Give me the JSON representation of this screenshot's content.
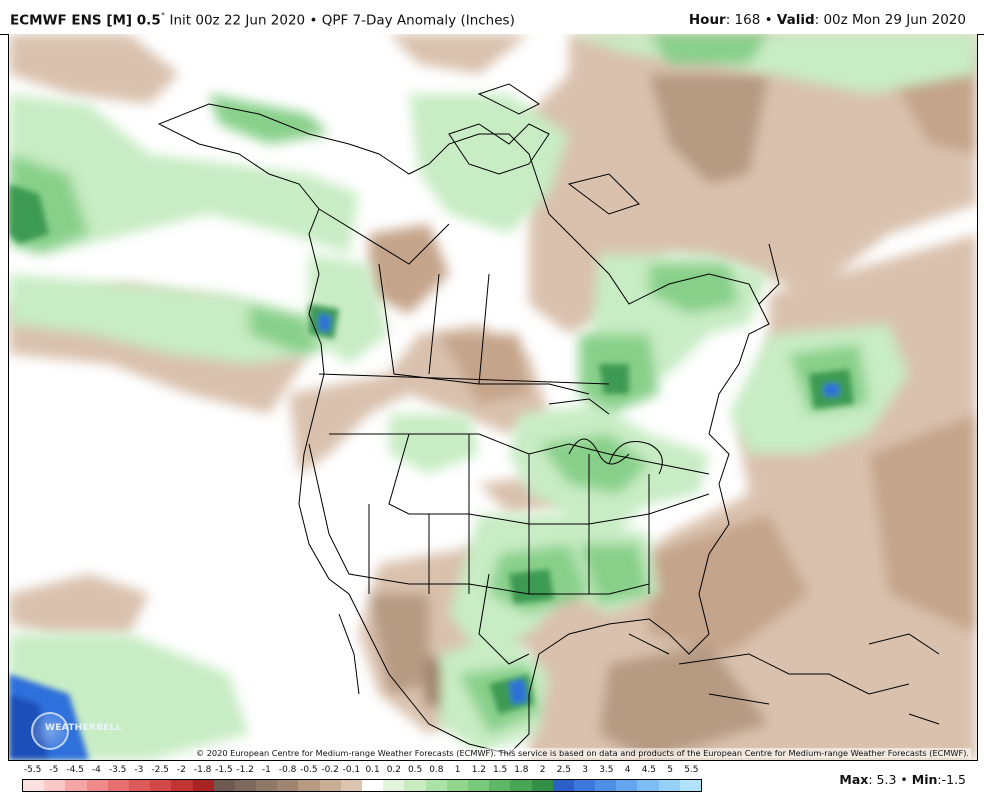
{
  "header": {
    "model": "ECMWF ENS [M] 0.5",
    "degree": "°",
    "init": " Init 00z 22 Jun 2020",
    "separator": " • ",
    "product": "QPF 7-Day Anomaly (Inches)",
    "hour_label": "Hour",
    "hour_value": ": 168",
    "valid_label": "Valid",
    "valid_value": ": 00z Mon 29 Jun 2020"
  },
  "map": {
    "credit": "© 2020 European Centre for Medium-range Weather Forecasts (ECMWF). This service is based on data and products of the European Centre for Medium-range Weather Forecasts (ECMWF).",
    "logo_text": "WEATHERBELL",
    "colors": {
      "ocean_land_neutral": "#ffffff",
      "dry_light": "#d9c1ad",
      "dry_mid": "#c4a48a",
      "dry_dark": "#9a7a62",
      "wet_light": "#c8ecc4",
      "wet_mid": "#88d08a",
      "wet_dark": "#3e9a52",
      "wet_blue": "#2f6fdc",
      "borders": "#000000"
    }
  },
  "legend": {
    "labels": [
      "-5.5",
      "-5",
      "-4.5",
      "-4",
      "-3.5",
      "-3",
      "-2.5",
      "-2",
      "-1.8",
      "-1.5",
      "-1.2",
      "-1",
      "-0.8",
      "-0.5",
      "-0.2",
      "-0.1",
      "0.1",
      "0.2",
      "0.5",
      "0.8",
      "1",
      "1.2",
      "1.5",
      "1.8",
      "2",
      "2.5",
      "3",
      "3.5",
      "4",
      "4.5",
      "5",
      "5.5"
    ],
    "colors": [
      "#fde0e0",
      "#fbc8c8",
      "#f4a6a6",
      "#ee8a8a",
      "#e67070",
      "#dd5a5a",
      "#d24848",
      "#c23434",
      "#a82424",
      "#6e5a50",
      "#7e6a5c",
      "#8e7866",
      "#a08670",
      "#b69a82",
      "#c9ae96",
      "#dcc4ae",
      "#ffffff",
      "#e2f4dc",
      "#c8ecc0",
      "#ade2a6",
      "#92d68e",
      "#78c97a",
      "#5cb866",
      "#46a656",
      "#338f47",
      "#2c5fc8",
      "#3c78dc",
      "#4e8fe6",
      "#64a6ee",
      "#7cbcf2",
      "#96d0f6",
      "#b2e2fa"
    ]
  },
  "stats": {
    "max_label": "Max",
    "max_value": ": 5.3",
    "min_label": "Min",
    "min_value": ":-1.5",
    "separator": " • "
  }
}
